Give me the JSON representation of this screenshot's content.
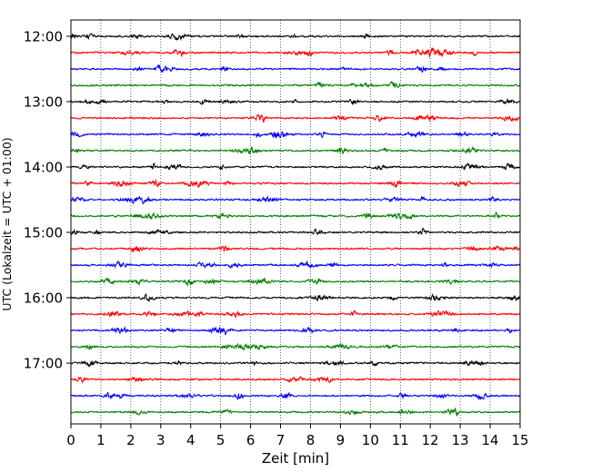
{
  "chart_data": {
    "type": "line",
    "title": "",
    "xlabel": "Zeit  [min]",
    "ylabel": "UTC (Lokalzeit = UTC + 01:00)",
    "xlim": [
      0,
      15
    ],
    "x_ticks": [
      "0",
      "1",
      "2",
      "3",
      "4",
      "5",
      "6",
      "7",
      "8",
      "9",
      "10",
      "11",
      "12",
      "13",
      "14",
      "15"
    ],
    "y_ticks": [
      "12:00",
      "13:00",
      "14:00",
      "15:00",
      "16:00",
      "17:00"
    ],
    "grid": "vertical-dotted",
    "trace_interval_minutes": 15,
    "first_trace_time": "12:00",
    "trace_count": 24,
    "trace_colors": [
      "#000000",
      "#ff0000",
      "#0000ff",
      "#007f00"
    ]
  }
}
